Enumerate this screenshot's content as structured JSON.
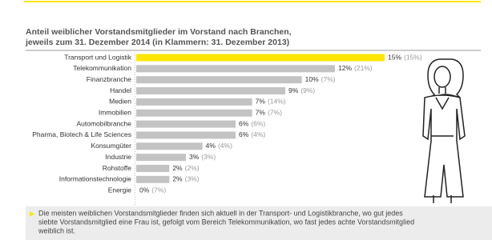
{
  "chart_data": {
    "type": "bar",
    "title": "Anteil weiblicher Vorstandsmitglieder im Vorstand nach Branchen,",
    "subtitle": "jeweils zum 31. Dezember 2014 (in Klammern: 31. Dezember 2013)",
    "categories": [
      "Transport und Logistik",
      "Telekommunikation",
      "Finanzbranche",
      "Handel",
      "Medien",
      "Immobilien",
      "Automobilbranche",
      "Pharma, Biotech & Life Sciences",
      "Konsumgüter",
      "Industrie",
      "Rohstoffe",
      "Informationstechnologie",
      "Energie"
    ],
    "values": [
      15,
      12,
      10,
      9,
      7,
      7,
      6,
      6,
      4,
      3,
      2,
      2,
      0
    ],
    "value_labels": [
      "15%",
      "12%",
      "10%",
      "9%",
      "7%",
      "7%",
      "6%",
      "6%",
      "4%",
      "3%",
      "2%",
      "2%",
      "0%"
    ],
    "values_2013": [
      15,
      21,
      7,
      9,
      14,
      7,
      6,
      4,
      4,
      3,
      2,
      3,
      7
    ],
    "value_labels_2013": [
      "(15%)",
      "(21%)",
      "(7%)",
      "(9%)",
      "(14%)",
      "(7%)",
      "(6%)",
      "(4%)",
      "(4%)",
      "(3%)",
      "(2%)",
      "(3%)",
      "(7%)"
    ],
    "highlight_color": "#ffe600",
    "color": "#c3c3c3",
    "note": [
      "Die meisten weiblichen Vorstandsmitglieder finden sich aktuell in der Transport- und Logistikbranche, wo gut jedes",
      "siebte Vorstandsmitglied eine Frau ist, gefolgt vom Bereich Telekommunikation, wo fast jedes achte Vorstandsmitglied",
      "weiblich ist."
    ]
  }
}
